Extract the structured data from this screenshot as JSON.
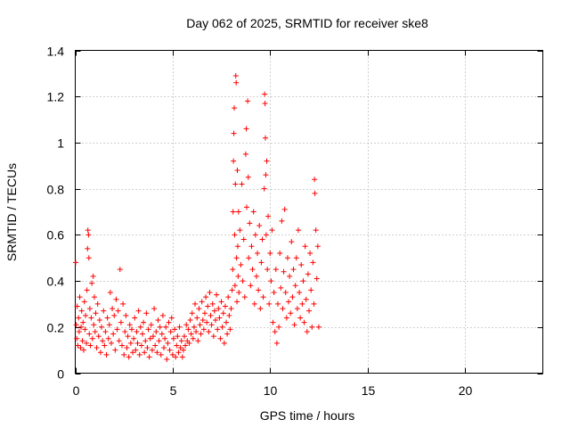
{
  "chart_data": {
    "type": "scatter",
    "title": "Day 062 of 2025, SRMTID for receiver ske8",
    "xlabel": "GPS time / hours",
    "ylabel": "SRMTID / TECUs",
    "xlim": [
      0,
      24
    ],
    "ylim": [
      0,
      1.4
    ],
    "xticks": [
      0,
      5,
      10,
      15,
      20
    ],
    "yticks": [
      0,
      0.2,
      0.4,
      0.6,
      0.8,
      1,
      1.2,
      1.4
    ],
    "xtick_labels": [
      "0",
      "5",
      "10",
      "15",
      "20"
    ],
    "ytick_labels": [
      "0",
      "0.2",
      "0.4",
      "0.6",
      "0.8",
      "1",
      "1.2",
      "1.4"
    ],
    "grid": true,
    "marker": "+",
    "color": "#ff0000",
    "series": [
      {
        "name": "ske8",
        "points": [
          [
            0.02,
            0.48
          ],
          [
            0.05,
            0.21
          ],
          [
            0.08,
            0.15
          ],
          [
            0.1,
            0.29
          ],
          [
            0.13,
            0.12
          ],
          [
            0.17,
            0.24
          ],
          [
            0.2,
            0.18
          ],
          [
            0.23,
            0.33
          ],
          [
            0.27,
            0.11
          ],
          [
            0.3,
            0.2
          ],
          [
            0.33,
            0.27
          ],
          [
            0.37,
            0.14
          ],
          [
            0.4,
            0.22
          ],
          [
            0.43,
            0.1
          ],
          [
            0.47,
            0.31
          ],
          [
            0.5,
            0.19
          ],
          [
            0.53,
            0.25
          ],
          [
            0.57,
            0.13
          ],
          [
            0.6,
            0.36
          ],
          [
            0.63,
            0.54
          ],
          [
            0.65,
            0.62
          ],
          [
            0.68,
            0.6
          ],
          [
            0.7,
            0.5
          ],
          [
            0.72,
            0.17
          ],
          [
            0.75,
            0.28
          ],
          [
            0.78,
            0.12
          ],
          [
            0.82,
            0.24
          ],
          [
            0.85,
            0.39
          ],
          [
            0.88,
            0.15
          ],
          [
            0.92,
            0.42
          ],
          [
            0.95,
            0.21
          ],
          [
            0.98,
            0.33
          ],
          [
            1.02,
            0.18
          ],
          [
            1.05,
            0.26
          ],
          [
            1.1,
            0.11
          ],
          [
            1.15,
            0.3
          ],
          [
            1.2,
            0.16
          ],
          [
            1.25,
            0.23
          ],
          [
            1.3,
            0.09
          ],
          [
            1.35,
            0.2
          ],
          [
            1.4,
            0.14
          ],
          [
            1.45,
            0.27
          ],
          [
            1.5,
            0.12
          ],
          [
            1.55,
            0.18
          ],
          [
            1.6,
            0.08
          ],
          [
            1.65,
            0.24
          ],
          [
            1.7,
            0.15
          ],
          [
            1.75,
            0.21
          ],
          [
            1.8,
            0.35
          ],
          [
            1.85,
            0.13
          ],
          [
            1.9,
            0.28
          ],
          [
            1.95,
            0.17
          ],
          [
            2.0,
            0.25
          ],
          [
            2.05,
            0.1
          ],
          [
            2.1,
            0.32
          ],
          [
            2.15,
            0.19
          ],
          [
            2.2,
            0.27
          ],
          [
            2.25,
            0.14
          ],
          [
            2.3,
            0.45
          ],
          [
            2.35,
            0.22
          ],
          [
            2.4,
            0.12
          ],
          [
            2.45,
            0.3
          ],
          [
            2.5,
            0.08
          ],
          [
            2.55,
            0.18
          ],
          [
            2.6,
            0.25
          ],
          [
            2.65,
            0.11
          ],
          [
            2.7,
            0.16
          ],
          [
            2.75,
            0.07
          ],
          [
            2.8,
            0.21
          ],
          [
            2.85,
            0.13
          ],
          [
            2.9,
            0.19
          ],
          [
            2.95,
            0.09
          ],
          [
            3.0,
            0.15
          ],
          [
            3.05,
            0.24
          ],
          [
            3.1,
            0.1
          ],
          [
            3.15,
            0.18
          ],
          [
            3.2,
            0.13
          ],
          [
            3.25,
            0.27
          ],
          [
            3.3,
            0.08
          ],
          [
            3.35,
            0.2
          ],
          [
            3.4,
            0.12
          ],
          [
            3.45,
            0.17
          ],
          [
            3.5,
            0.22
          ],
          [
            3.55,
            0.09
          ],
          [
            3.6,
            0.14
          ],
          [
            3.65,
            0.26
          ],
          [
            3.7,
            0.11
          ],
          [
            3.75,
            0.19
          ],
          [
            3.8,
            0.07
          ],
          [
            3.85,
            0.15
          ],
          [
            3.9,
            0.21
          ],
          [
            3.95,
            0.1
          ],
          [
            4.0,
            0.16
          ],
          [
            4.05,
            0.28
          ],
          [
            4.1,
            0.12
          ],
          [
            4.15,
            0.18
          ],
          [
            4.2,
            0.09
          ],
          [
            4.25,
            0.23
          ],
          [
            4.3,
            0.14
          ],
          [
            4.35,
            0.2
          ],
          [
            4.4,
            0.08
          ],
          [
            4.45,
            0.17
          ],
          [
            4.5,
            0.25
          ],
          [
            4.55,
            0.11
          ],
          [
            4.6,
            0.15
          ],
          [
            4.65,
            0.2
          ],
          [
            4.7,
            0.06
          ],
          [
            4.75,
            0.13
          ],
          [
            4.8,
            0.22
          ],
          [
            4.85,
            0.1
          ],
          [
            4.9,
            0.18
          ],
          [
            4.95,
            0.24
          ],
          [
            5.0,
            0.08
          ],
          [
            5.05,
            0.15
          ],
          [
            5.1,
            0.19
          ],
          [
            5.15,
            0.07
          ],
          [
            5.2,
            0.12
          ],
          [
            5.25,
            0.16
          ],
          [
            5.3,
            0.09
          ],
          [
            5.35,
            0.2
          ],
          [
            5.4,
            0.11
          ],
          [
            5.45,
            0.14
          ],
          [
            5.5,
            0.07
          ],
          [
            5.55,
            0.1
          ],
          [
            5.6,
            0.16
          ],
          [
            5.65,
            0.12
          ],
          [
            5.7,
            0.21
          ],
          [
            5.75,
            0.14
          ],
          [
            5.8,
            0.19
          ],
          [
            5.85,
            0.13
          ],
          [
            5.9,
            0.23
          ],
          [
            5.95,
            0.17
          ],
          [
            6.0,
            0.26
          ],
          [
            6.05,
            0.15
          ],
          [
            6.1,
            0.2
          ],
          [
            6.15,
            0.3
          ],
          [
            6.2,
            0.18
          ],
          [
            6.25,
            0.24
          ],
          [
            6.3,
            0.14
          ],
          [
            6.35,
            0.28
          ],
          [
            6.4,
            0.21
          ],
          [
            6.45,
            0.17
          ],
          [
            6.5,
            0.31
          ],
          [
            6.55,
            0.23
          ],
          [
            6.6,
            0.19
          ],
          [
            6.65,
            0.26
          ],
          [
            6.7,
            0.33
          ],
          [
            6.75,
            0.22
          ],
          [
            6.8,
            0.29
          ],
          [
            6.85,
            0.18
          ],
          [
            6.9,
            0.35
          ],
          [
            6.95,
            0.25
          ],
          [
            7.0,
            0.21
          ],
          [
            7.05,
            0.3
          ],
          [
            7.1,
            0.16
          ],
          [
            7.15,
            0.27
          ],
          [
            7.2,
            0.23
          ],
          [
            7.25,
            0.34
          ],
          [
            7.3,
            0.19
          ],
          [
            7.35,
            0.28
          ],
          [
            7.4,
            0.24
          ],
          [
            7.45,
            0.15
          ],
          [
            7.5,
            0.31
          ],
          [
            7.55,
            0.2
          ],
          [
            7.6,
            0.26
          ],
          [
            7.65,
            0.13
          ],
          [
            7.7,
            0.29
          ],
          [
            7.75,
            0.22
          ],
          [
            7.8,
            0.17
          ],
          [
            7.85,
            0.33
          ],
          [
            7.9,
            0.25
          ],
          [
            7.95,
            0.19
          ],
          [
            8.0,
            0.28
          ],
          [
            8.05,
            0.36
          ],
          [
            8.08,
            0.45
          ],
          [
            8.1,
            0.7
          ],
          [
            8.12,
            0.92
          ],
          [
            8.14,
            1.04
          ],
          [
            8.16,
            1.15
          ],
          [
            8.18,
            0.6
          ],
          [
            8.2,
            0.38
          ],
          [
            8.22,
            0.82
          ],
          [
            8.24,
            1.29
          ],
          [
            8.26,
            1.26
          ],
          [
            8.28,
            0.5
          ],
          [
            8.3,
            0.31
          ],
          [
            8.32,
            0.88
          ],
          [
            8.34,
            0.55
          ],
          [
            8.36,
            0.42
          ],
          [
            8.38,
            0.7
          ],
          [
            8.4,
            0.35
          ],
          [
            8.45,
            0.62
          ],
          [
            8.5,
            0.47
          ],
          [
            8.55,
            0.82
          ],
          [
            8.6,
            0.4
          ],
          [
            8.65,
            0.58
          ],
          [
            8.7,
            0.33
          ],
          [
            8.75,
            0.95
          ],
          [
            8.78,
            1.06
          ],
          [
            8.8,
            0.72
          ],
          [
            8.85,
            1.18
          ],
          [
            8.88,
            0.85
          ],
          [
            8.9,
            0.5
          ],
          [
            8.95,
            0.65
          ],
          [
            9.0,
            0.38
          ],
          [
            9.05,
            0.55
          ],
          [
            9.1,
            0.45
          ],
          [
            9.15,
            0.7
          ],
          [
            9.2,
            0.3
          ],
          [
            9.25,
            0.6
          ],
          [
            9.3,
            0.42
          ],
          [
            9.35,
            0.52
          ],
          [
            9.4,
            0.36
          ],
          [
            9.45,
            0.64
          ],
          [
            9.5,
            0.28
          ],
          [
            9.55,
            0.48
          ],
          [
            9.6,
            0.58
          ],
          [
            9.65,
            0.33
          ],
          [
            9.7,
            0.8
          ],
          [
            9.72,
            1.21
          ],
          [
            9.74,
            1.17
          ],
          [
            9.76,
            1.02
          ],
          [
            9.78,
            0.86
          ],
          [
            9.8,
            0.6
          ],
          [
            9.83,
            0.92
          ],
          [
            9.86,
            0.45
          ],
          [
            9.9,
            0.68
          ],
          [
            9.95,
            0.3
          ],
          [
            10.0,
            0.52
          ],
          [
            10.05,
            0.4
          ],
          [
            10.1,
            0.62
          ],
          [
            10.15,
            0.22
          ],
          [
            10.2,
            0.35
          ],
          [
            10.25,
            0.18
          ],
          [
            10.3,
            0.45
          ],
          [
            10.35,
            0.13
          ],
          [
            10.4,
            0.3
          ],
          [
            10.45,
            0.2
          ],
          [
            10.5,
            0.52
          ],
          [
            10.55,
            0.37
          ],
          [
            10.6,
            0.66
          ],
          [
            10.65,
            0.28
          ],
          [
            10.7,
            0.44
          ],
          [
            10.75,
            0.71
          ],
          [
            10.8,
            0.35
          ],
          [
            10.85,
            0.24
          ],
          [
            10.9,
            0.5
          ],
          [
            10.95,
            0.31
          ],
          [
            11.0,
            0.42
          ],
          [
            11.05,
            0.26
          ],
          [
            11.1,
            0.57
          ],
          [
            11.15,
            0.33
          ],
          [
            11.2,
            0.45
          ],
          [
            11.25,
            0.21
          ],
          [
            11.3,
            0.38
          ],
          [
            11.35,
            0.5
          ],
          [
            11.4,
            0.28
          ],
          [
            11.45,
            0.62
          ],
          [
            11.5,
            0.35
          ],
          [
            11.55,
            0.24
          ],
          [
            11.6,
            0.47
          ],
          [
            11.65,
            0.3
          ],
          [
            11.7,
            0.4
          ],
          [
            11.75,
            0.22
          ],
          [
            11.8,
            0.55
          ],
          [
            11.85,
            0.32
          ],
          [
            11.9,
            0.18
          ],
          [
            11.95,
            0.43
          ],
          [
            12.0,
            0.27
          ],
          [
            12.05,
            0.52
          ],
          [
            12.1,
            0.36
          ],
          [
            12.15,
            0.2
          ],
          [
            12.2,
            0.48
          ],
          [
            12.25,
            0.3
          ],
          [
            12.28,
            0.84
          ],
          [
            12.3,
            0.78
          ],
          [
            12.35,
            0.62
          ],
          [
            12.4,
            0.41
          ],
          [
            12.45,
            0.55
          ],
          [
            12.5,
            0.2
          ]
        ]
      }
    ]
  }
}
